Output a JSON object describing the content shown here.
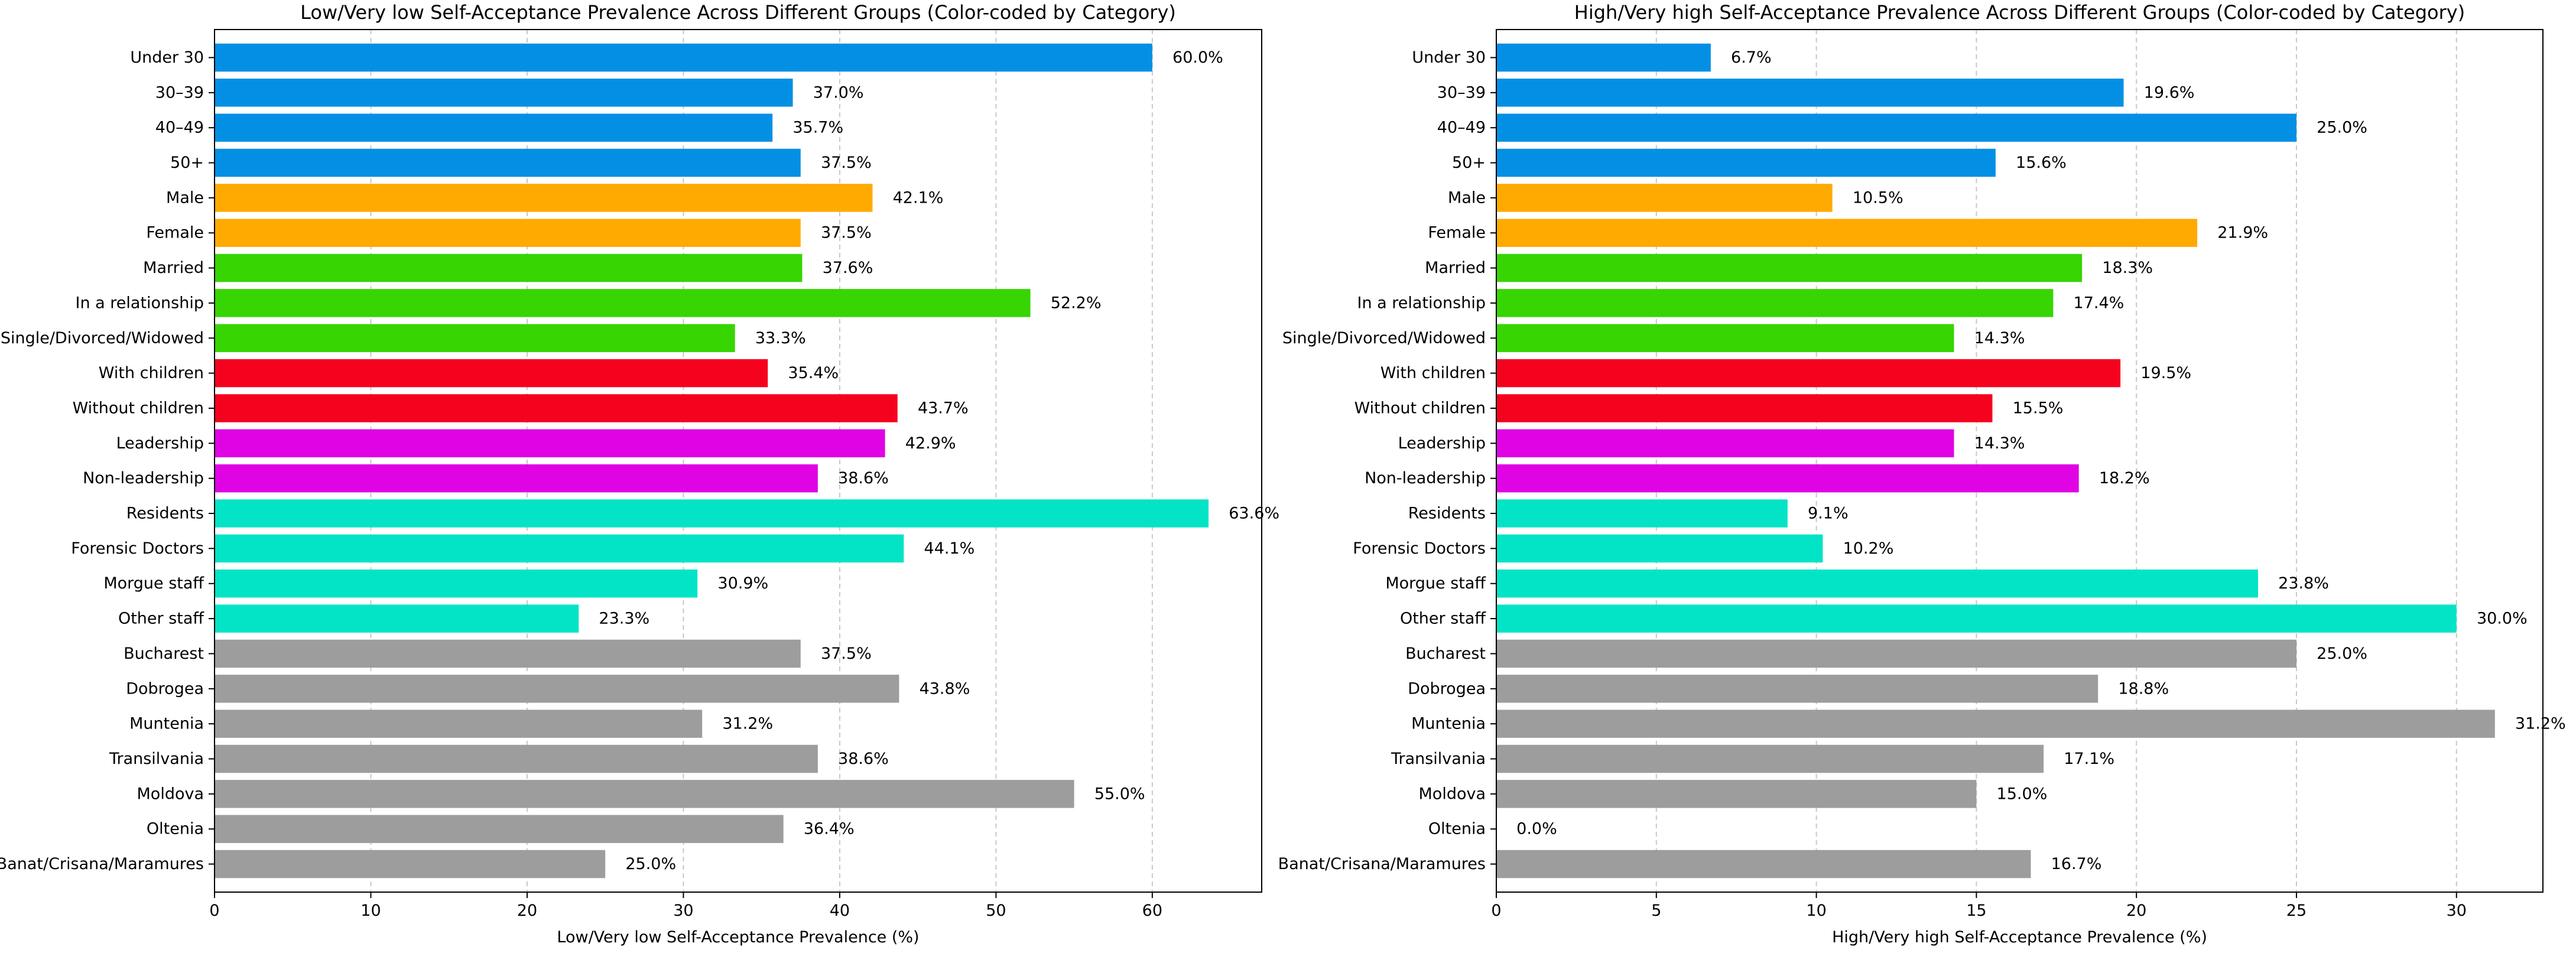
{
  "chart_data": [
    {
      "type": "bar",
      "orientation": "horizontal",
      "title": "Low/Very low Self-Acceptance Prevalence Across Different Groups (Color-coded by Category)",
      "xlabel": "Low/Very low Self-Acceptance Prevalence (%)",
      "ylabel": "",
      "xlim": [
        0,
        67
      ],
      "xticks": [
        0,
        10,
        20,
        30,
        40,
        50,
        60
      ],
      "grid": "x-dashed",
      "categories": [
        "Under 30",
        "30–39",
        "40–49",
        "50+",
        "Male",
        "Female",
        "Married",
        "In a relationship",
        "Single/Divorced/Widowed",
        "With children",
        "Without children",
        "Leadership",
        "Non-leadership",
        "Residents",
        "Forensic Doctors",
        "Morgue staff",
        "Other staff",
        "Bucharest",
        "Dobrogea",
        "Muntenia",
        "Transilvania",
        "Moldova",
        "Oltenia",
        "Banat/Crisana/Maramures"
      ],
      "values": [
        60.0,
        37.0,
        35.7,
        37.5,
        42.1,
        37.5,
        37.6,
        52.2,
        33.3,
        35.4,
        43.7,
        42.9,
        38.6,
        63.6,
        44.1,
        30.9,
        23.3,
        37.5,
        43.8,
        31.2,
        38.6,
        55.0,
        36.4,
        25.0
      ],
      "value_labels": [
        "60.0%",
        "37.0%",
        "35.7%",
        "37.5%",
        "42.1%",
        "37.5%",
        "37.6%",
        "52.2%",
        "33.3%",
        "35.4%",
        "43.7%",
        "42.9%",
        "38.6%",
        "63.6%",
        "44.1%",
        "30.9%",
        "23.3%",
        "37.5%",
        "43.8%",
        "31.2%",
        "38.6%",
        "55.0%",
        "36.4%",
        "25.0%"
      ],
      "groups": [
        "age",
        "age",
        "age",
        "age",
        "gender",
        "gender",
        "relationship",
        "relationship",
        "relationship",
        "children",
        "children",
        "position",
        "position",
        "role",
        "role",
        "role",
        "role",
        "region",
        "region",
        "region",
        "region",
        "region",
        "region",
        "region"
      ]
    },
    {
      "type": "bar",
      "orientation": "horizontal",
      "title": "High/Very high Self-Acceptance Prevalence Across Different Groups (Color-coded by Category)",
      "xlabel": "High/Very high Self-Acceptance Prevalence (%)",
      "ylabel": "",
      "xlim": [
        0,
        32.7
      ],
      "xticks": [
        0,
        5,
        10,
        15,
        20,
        25,
        30
      ],
      "grid": "x-dashed",
      "categories": [
        "Under 30",
        "30–39",
        "40–49",
        "50+",
        "Male",
        "Female",
        "Married",
        "In a relationship",
        "Single/Divorced/Widowed",
        "With children",
        "Without children",
        "Leadership",
        "Non-leadership",
        "Residents",
        "Forensic Doctors",
        "Morgue staff",
        "Other staff",
        "Bucharest",
        "Dobrogea",
        "Muntenia",
        "Transilvania",
        "Moldova",
        "Oltenia",
        "Banat/Crisana/Maramures"
      ],
      "values": [
        6.7,
        19.6,
        25.0,
        15.6,
        10.5,
        21.9,
        18.3,
        17.4,
        14.3,
        19.5,
        15.5,
        14.3,
        18.2,
        9.1,
        10.2,
        23.8,
        30.0,
        25.0,
        18.8,
        31.2,
        17.1,
        15.0,
        0.0,
        16.7
      ],
      "value_labels": [
        "6.7%",
        "19.6%",
        "25.0%",
        "15.6%",
        "10.5%",
        "21.9%",
        "18.3%",
        "17.4%",
        "14.3%",
        "19.5%",
        "15.5%",
        "14.3%",
        "18.2%",
        "9.1%",
        "10.2%",
        "23.8%",
        "30.0%",
        "25.0%",
        "18.8%",
        "31.2%",
        "17.1%",
        "15.0%",
        "0.0%",
        "16.7%"
      ],
      "groups": [
        "age",
        "age",
        "age",
        "age",
        "gender",
        "gender",
        "relationship",
        "relationship",
        "relationship",
        "children",
        "children",
        "position",
        "position",
        "role",
        "role",
        "role",
        "role",
        "region",
        "region",
        "region",
        "region",
        "region",
        "region",
        "region"
      ]
    }
  ],
  "group_colors": {
    "age": "#0390e4",
    "gender": "#ffaa00",
    "relationship": "#37d501",
    "children": "#f5031e",
    "position": "#e003e4",
    "role": "#03e4c6",
    "region": "#9d9d9d"
  }
}
